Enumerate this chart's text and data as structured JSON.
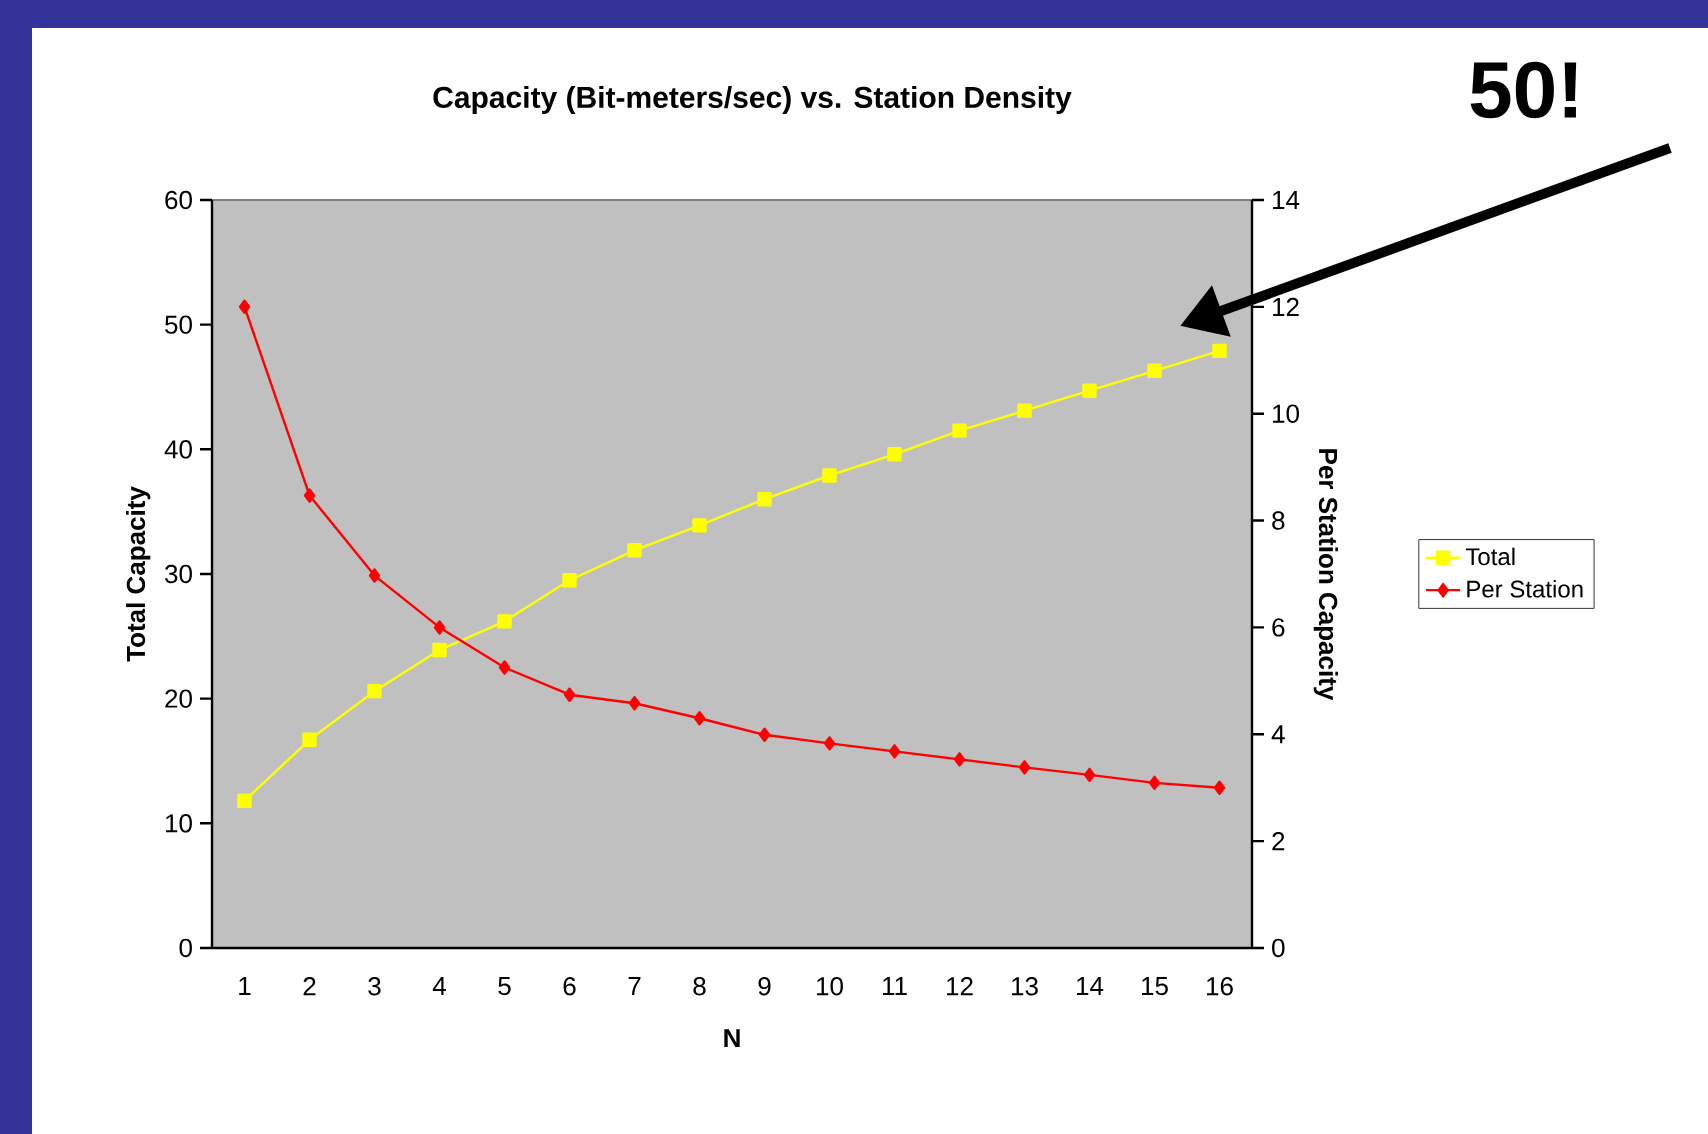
{
  "chart_data": {
    "type": "line",
    "title": "Capacity (Bit-meters/sec) vs. Station Density",
    "xlabel": "N",
    "ylabel": "Total Capacity",
    "y2label": "Per Station Capacity",
    "categories": [
      "1",
      "2",
      "3",
      "4",
      "5",
      "6",
      "7",
      "8",
      "9",
      "10",
      "11",
      "12",
      "13",
      "14",
      "15",
      "16"
    ],
    "series": [
      {
        "name": "Total",
        "color": "#ffff00",
        "marker": "square",
        "values": [
          11.8,
          16.7,
          20.6,
          23.9,
          26.2,
          29.5,
          31.9,
          33.9,
          36.0,
          37.9,
          39.6,
          41.5,
          43.1,
          44.7,
          46.3,
          47.9
        ]
      },
      {
        "name": "Per Station",
        "color": "#ff0000",
        "marker": "diamond",
        "axis": "y2",
        "values": [
          12.0,
          8.47,
          6.97,
          6.0,
          5.25,
          4.74,
          4.58,
          4.3,
          3.99,
          3.83,
          3.68,
          3.53,
          3.38,
          3.24,
          3.09,
          3.0
        ]
      }
    ],
    "ylim": [
      0,
      60
    ],
    "yticks": [
      0,
      10,
      20,
      30,
      40,
      50,
      60
    ],
    "y2lim": [
      0,
      14
    ],
    "y2ticks": [
      0,
      2,
      4,
      6,
      8,
      10,
      12,
      14
    ],
    "legend": "right",
    "annotations": [
      "50!"
    ]
  }
}
